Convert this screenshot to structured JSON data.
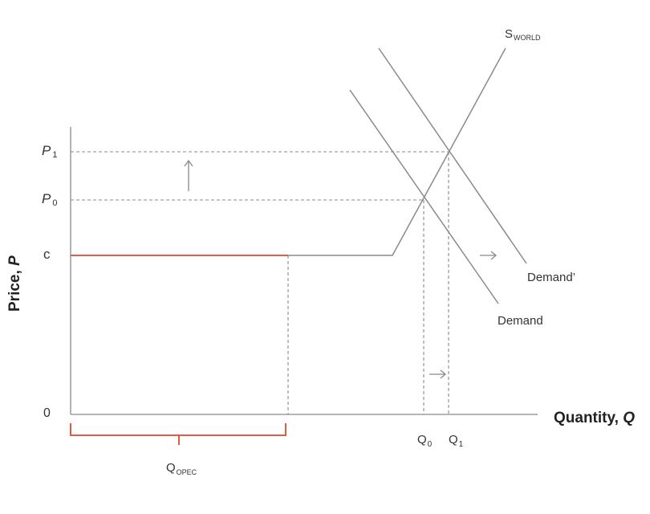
{
  "axes": {
    "y_title_main": "Price, ",
    "y_title_symbol": "P",
    "x_title_main": "Quantity, ",
    "x_title_symbol": "Q",
    "origin": "0"
  },
  "y_ticks": {
    "p1_letter": "P",
    "p1_sub": "1",
    "p0_letter": "P",
    "p0_sub": "0",
    "c": "c"
  },
  "x_ticks": {
    "q0_letter": "Q",
    "q0_sub": "0",
    "q1_letter": "Q",
    "q1_sub": "1",
    "qopec_letter": "Q",
    "qopec_sub": "OPEC"
  },
  "curves": {
    "supply_letter": "S",
    "supply_sub": "WORLD",
    "demand": "Demand",
    "demand_shifted": "Demand’"
  },
  "colors": {
    "curve": "#8a8a8a",
    "opec": "#e1462e",
    "text": "#333333"
  }
}
